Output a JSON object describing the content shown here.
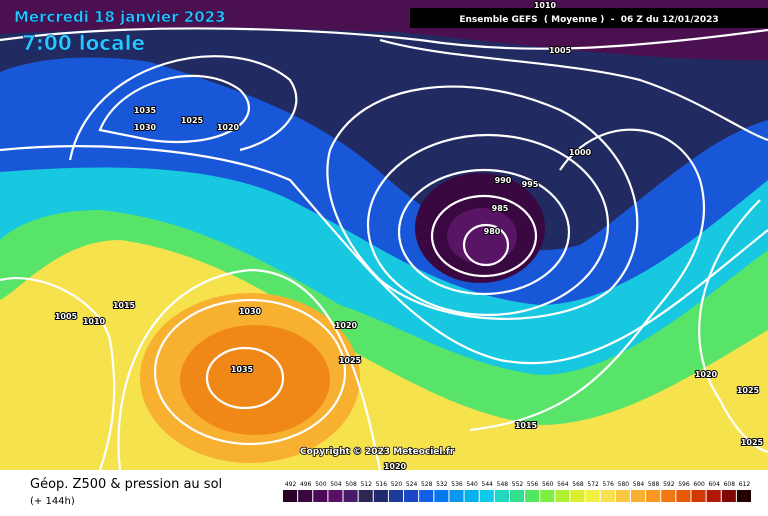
{
  "header": {
    "date": "Mercredi 18 janvier 2023",
    "time": "7:00 locale",
    "run": "Ensemble GEFS  ( Moyenne )  -  06 Z du 12/01/2023"
  },
  "copyright": "Copyright © 2023 Meteociel.fr",
  "footer": {
    "title": "Géop. Z500 & pression au sol",
    "lead": "(+ 144h)"
  },
  "isobar_labels": [
    1010,
    1005,
    1035,
    1030,
    1025,
    1020,
    1000,
    990,
    995,
    985,
    980,
    1005,
    1010,
    1015,
    1030,
    1020,
    1025,
    1035,
    1015,
    1020,
    1020,
    1025,
    1025
  ],
  "colorbar": {
    "labels": [
      492,
      496,
      500,
      504,
      508,
      512,
      516,
      520,
      524,
      528,
      532,
      536,
      540,
      544,
      548,
      552,
      556,
      560,
      564,
      568,
      572,
      576,
      580,
      584,
      588,
      592,
      596,
      600,
      604,
      608,
      612
    ],
    "colors": [
      "#280028",
      "#3a0640",
      "#4a0a55",
      "#5a1065",
      "#4a1a6a",
      "#2c2650",
      "#202a70",
      "#1e3a9a",
      "#1848c8",
      "#1060e8",
      "#0878f0",
      "#0898f0",
      "#00b0f0",
      "#10c8e8",
      "#20d8c0",
      "#30e090",
      "#50e860",
      "#80f040",
      "#b0f030",
      "#d8f030",
      "#f0f040",
      "#f8e050",
      "#f8c840",
      "#f8b030",
      "#f89820",
      "#f07810",
      "#e85808",
      "#d03808",
      "#b01808",
      "#800808",
      "#200000"
    ]
  }
}
